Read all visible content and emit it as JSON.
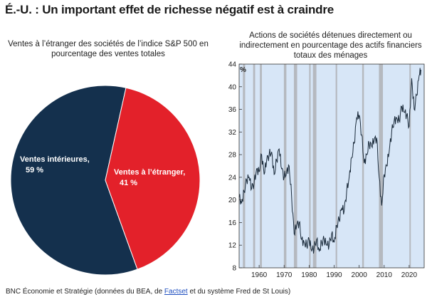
{
  "page": {
    "title": "É.-U. : Un important effet de richesse négatif est à craindre",
    "footer_before": "BNC Économie et Stratégie (données du BEA, de ",
    "footer_link": "Factset",
    "footer_after": " et du système Fred de St Louis)"
  },
  "chart_data": [
    {
      "type": "pie",
      "title": "Ventes à l’étranger des sociétés de l’indice S&P 500 en pourcentage des ventes totales",
      "slices": [
        {
          "name": "Ventes intérieures,",
          "value_label": "59 %",
          "value": 59,
          "color": "#14304d"
        },
        {
          "name": "Ventes à l’étranger,",
          "value_label": "41 %",
          "value": 41,
          "color": "#e3212a"
        }
      ]
    },
    {
      "type": "line",
      "title": "Actions de sociétés détenues directement ou indirectement en pourcentage des actifs financiers totaux des ménages",
      "ylabel": "%",
      "xlim": [
        1952,
        2026
      ],
      "ylim": [
        8,
        44
      ],
      "yticks": [
        8,
        12,
        16,
        20,
        24,
        28,
        32,
        36,
        40,
        44
      ],
      "xticks": [
        1960,
        1970,
        1980,
        1990,
        2000,
        2010,
        2020
      ],
      "grid": false,
      "line_color": "#1a2a3a",
      "background_color": "#d7e6f7",
      "recession_color": "#b5b9bf",
      "recessions": [
        [
          1953.5,
          1954.4
        ],
        [
          1957.6,
          1958.4
        ],
        [
          1960.3,
          1961.1
        ],
        [
          1969.9,
          1970.9
        ],
        [
          1973.9,
          1975.2
        ],
        [
          1980.0,
          1980.6
        ],
        [
          1981.5,
          1982.9
        ],
        [
          1990.6,
          1991.2
        ],
        [
          2001.2,
          2001.9
        ],
        [
          2007.9,
          2009.5
        ],
        [
          2020.1,
          2020.4
        ]
      ],
      "series": [
        {
          "x": [
            1952,
            1953,
            1954,
            1955,
            1956,
            1957,
            1958,
            1959,
            1960,
            1961,
            1962,
            1963,
            1964,
            1965,
            1966,
            1967,
            1968,
            1969,
            1970,
            1971,
            1972,
            1973,
            1974,
            1975,
            1976,
            1977,
            1978,
            1979,
            1980,
            1981,
            1982,
            1983,
            1984,
            1985,
            1986,
            1987,
            1988,
            1989,
            1990,
            1991,
            1992,
            1993,
            1994,
            1995,
            1996,
            1997,
            1998,
            1999,
            2000,
            2001,
            2002,
            2003,
            2004,
            2005,
            2006,
            2007,
            2008,
            2009,
            2010,
            2011,
            2012,
            2013,
            2014,
            2015,
            2016,
            2017,
            2018,
            2019,
            2020,
            2021,
            2022,
            2023,
            2024,
            2024.7
          ],
          "y": [
            20.5,
            19.5,
            21.5,
            23.5,
            24.0,
            22.0,
            23.0,
            25.5,
            25.0,
            28.0,
            24.5,
            27.0,
            28.0,
            28.5,
            24.5,
            27.0,
            29.0,
            25.5,
            24.0,
            25.0,
            26.0,
            20.5,
            14.0,
            15.5,
            16.0,
            13.0,
            12.5,
            12.0,
            13.0,
            11.0,
            11.5,
            13.0,
            11.0,
            12.5,
            13.0,
            12.0,
            12.0,
            14.0,
            12.5,
            15.5,
            16.5,
            18.5,
            18.0,
            21.5,
            24.0,
            27.5,
            30.0,
            34.5,
            35.0,
            31.5,
            26.5,
            28.0,
            30.0,
            29.5,
            30.5,
            31.0,
            24.0,
            19.0,
            24.5,
            26.0,
            28.5,
            32.0,
            34.0,
            34.5,
            34.0,
            36.5,
            35.5,
            35.0,
            33.0,
            41.5,
            36.0,
            38.5,
            42.0,
            43.0
          ]
        }
      ]
    }
  ]
}
